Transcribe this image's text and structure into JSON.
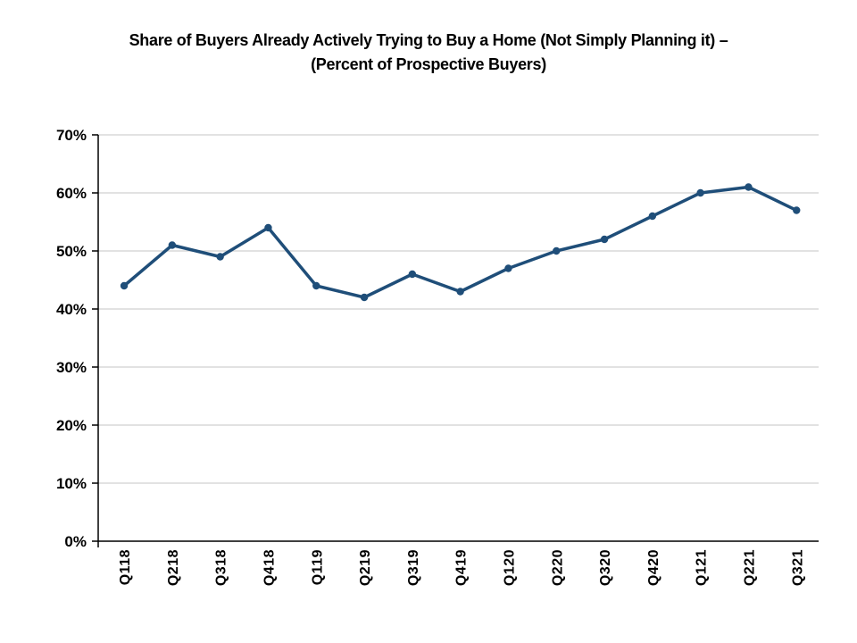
{
  "header": {
    "title_line1": "Share of Buyers Already Actively Trying to Buy a Home (Not Simply Planning it) –",
    "title_line2": "(Percent of Prospective Buyers)"
  },
  "chart_data": {
    "type": "line",
    "title": "Share of Buyers Already Actively Trying to Buy a Home (Not Simply Planning it) – (Percent of Prospective Buyers)",
    "categories": [
      "Q118",
      "Q218",
      "Q318",
      "Q418",
      "Q119",
      "Q219",
      "Q319",
      "Q419",
      "Q120",
      "Q220",
      "Q320",
      "Q420",
      "Q121",
      "Q221",
      "Q321"
    ],
    "values": [
      44,
      51,
      49,
      54,
      44,
      42,
      46,
      43,
      47,
      50,
      52,
      56,
      60,
      61,
      57
    ],
    "xlabel": "",
    "ylabel": "",
    "ylim": [
      0,
      70
    ],
    "ytick_interval": 10,
    "ytick_labels": [
      "0%",
      "10%",
      "20%",
      "30%",
      "40%",
      "50%",
      "60%",
      "70%"
    ],
    "grid": true,
    "legend": "none",
    "colors": {
      "line": "#1F4E79",
      "marker": "#1F4E79",
      "gridline": "#D9D9D9",
      "axis": "#000000",
      "text": "#000000",
      "background": "#FFFFFF"
    }
  }
}
